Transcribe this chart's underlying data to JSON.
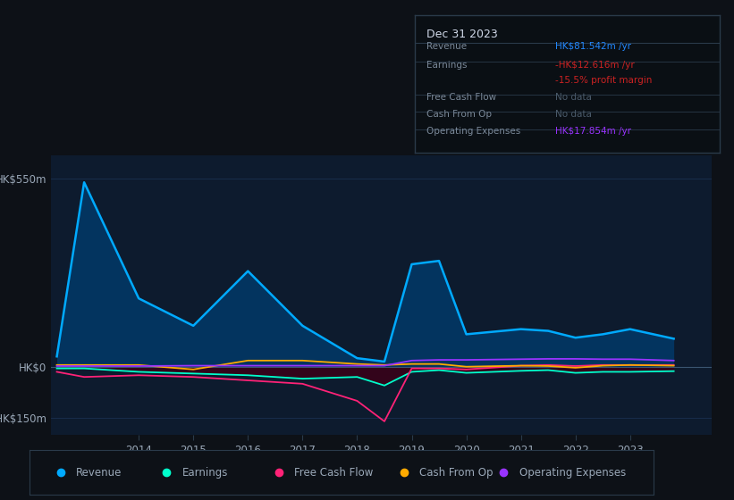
{
  "bg_color": "#0d1117",
  "plot_bg_color": "#0d1b2e",
  "grid_color": "#1a3050",
  "text_color": "#9aa8b8",
  "title_text_color": "#d0d8e8",
  "years": [
    2012.5,
    2013,
    2014,
    2015,
    2016,
    2017,
    2018,
    2018.5,
    2019,
    2019.5,
    2020,
    2021,
    2021.5,
    2022,
    2022.5,
    2023,
    2023.8
  ],
  "revenue": [
    30,
    540,
    200,
    120,
    280,
    120,
    25,
    15,
    300,
    310,
    95,
    110,
    105,
    85,
    95,
    110,
    82
  ],
  "earnings": [
    -5,
    -5,
    -15,
    -20,
    -25,
    -35,
    -30,
    -55,
    -15,
    -10,
    -18,
    -12,
    -10,
    -18,
    -15,
    -15,
    -13
  ],
  "free_cash_flow": [
    -15,
    -30,
    -25,
    -30,
    -40,
    -50,
    -100,
    -160,
    -5,
    -5,
    -8,
    3,
    5,
    2,
    5,
    5,
    5
  ],
  "cash_from_op": [
    5,
    5,
    5,
    -8,
    18,
    18,
    8,
    5,
    8,
    8,
    0,
    3,
    2,
    -3,
    3,
    5,
    3
  ],
  "operating_exp": [
    2,
    2,
    2,
    3,
    3,
    3,
    3,
    3,
    18,
    20,
    20,
    22,
    23,
    23,
    22,
    22,
    18
  ],
  "revenue_color": "#00aaff",
  "earnings_color": "#00ffcc",
  "free_cash_flow_color": "#ff2277",
  "cash_from_op_color": "#ffaa00",
  "operating_exp_color": "#9933ff",
  "revenue_fill_alpha": 0.75,
  "earnings_fill_alpha": 0.85,
  "ylim": [
    -200,
    620
  ],
  "yticks": [
    -150,
    0,
    550
  ],
  "ytick_labels": [
    "-HK$150m",
    "HK$0",
    "HK$550m"
  ],
  "xtick_positions": [
    2014,
    2015,
    2016,
    2017,
    2018,
    2019,
    2020,
    2021,
    2022,
    2023
  ],
  "xtick_labels": [
    "2014",
    "2015",
    "2016",
    "2017",
    "2018",
    "2019",
    "2020",
    "2021",
    "2022",
    "2023"
  ],
  "info_box": {
    "title": "Dec 31 2023",
    "rows": [
      {
        "label": "Revenue",
        "value": "HK$81.542m /yr",
        "value_color": "#2288ff"
      },
      {
        "label": "Earnings",
        "value": "-HK$12.616m /yr",
        "value_color": "#cc2222"
      },
      {
        "label": "",
        "value": "-15.5% profit margin",
        "value_color": "#cc2222"
      },
      {
        "label": "Free Cash Flow",
        "value": "No data",
        "value_color": "#4a5a6a"
      },
      {
        "label": "Cash From Op",
        "value": "No data",
        "value_color": "#4a5a6a"
      },
      {
        "label": "Operating Expenses",
        "value": "HK$17.854m /yr",
        "value_color": "#9933ff"
      }
    ]
  },
  "legend_items": [
    {
      "label": "Revenue",
      "color": "#00aaff"
    },
    {
      "label": "Earnings",
      "color": "#00ffcc"
    },
    {
      "label": "Free Cash Flow",
      "color": "#ff2277"
    },
    {
      "label": "Cash From Op",
      "color": "#ffaa00"
    },
    {
      "label": "Operating Expenses",
      "color": "#9933ff"
    }
  ]
}
